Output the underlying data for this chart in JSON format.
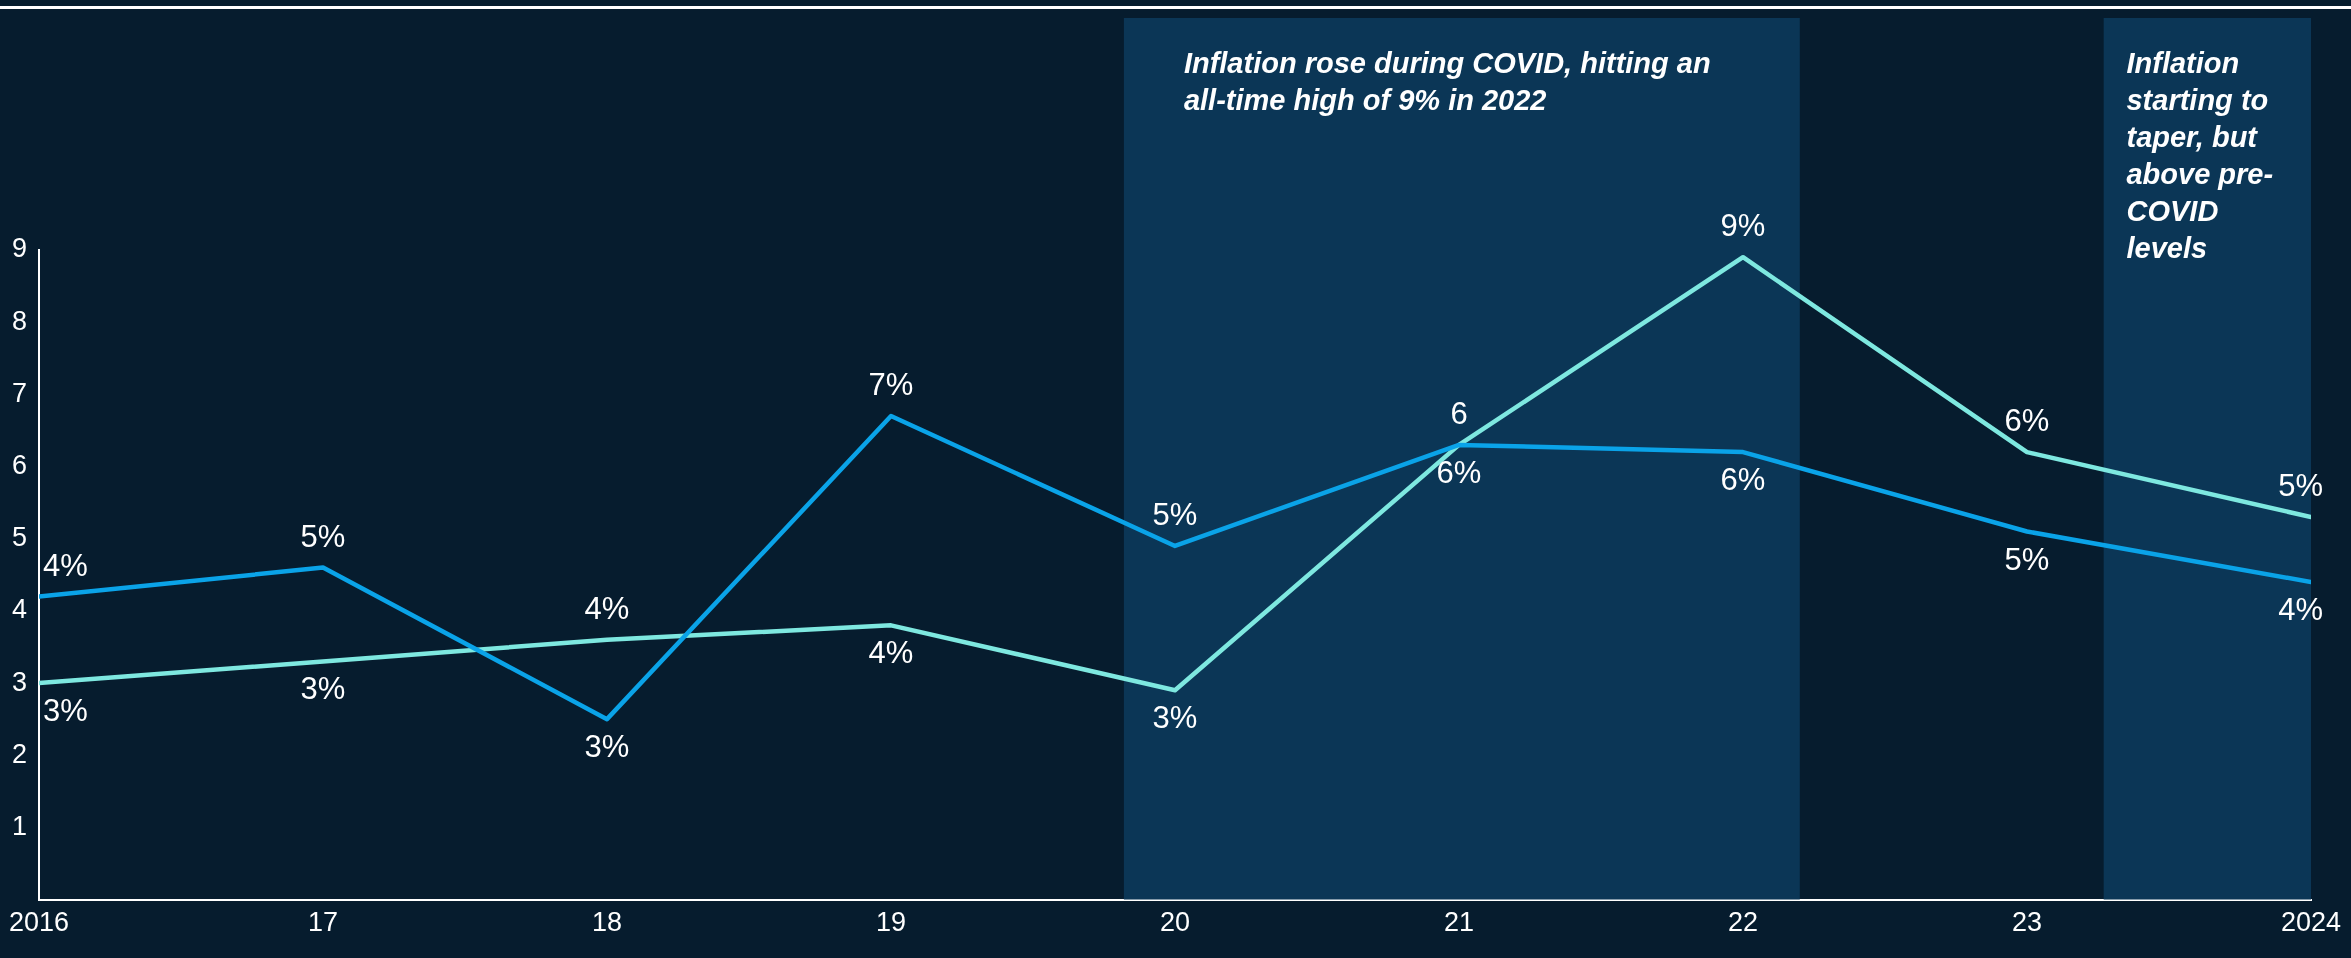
{
  "chart_data": {
    "type": "line",
    "x": [
      2016,
      2017,
      2018,
      2019,
      2020,
      2021,
      2022,
      2023,
      2024
    ],
    "xlim": [
      2016,
      2024
    ],
    "xticks": [
      {
        "value": 2016,
        "label": "2016"
      },
      {
        "value": 2017,
        "label": "17"
      },
      {
        "value": 2018,
        "label": "18"
      },
      {
        "value": 2019,
        "label": "19"
      },
      {
        "value": 2020,
        "label": "20"
      },
      {
        "value": 2021,
        "label": "21"
      },
      {
        "value": 2022,
        "label": "22"
      },
      {
        "value": 2023,
        "label": "23"
      },
      {
        "value": 2024,
        "label": "2024"
      }
    ],
    "ylim": [
      0,
      9
    ],
    "yticks": [
      1,
      2,
      3,
      4,
      5,
      6,
      7,
      8,
      9
    ],
    "series": [
      {
        "color": "#0aa3e8",
        "values": [
          4.2,
          4.6,
          2.5,
          6.7,
          4.9,
          6.3,
          6.2,
          5.1,
          4.4
        ],
        "value_labels": [
          "4%",
          "5%",
          "3%",
          "7%",
          "5%",
          "6",
          "6%",
          "5%",
          "4%"
        ]
      },
      {
        "color": "#7ee8e0",
        "values": [
          3.0,
          3.3,
          3.6,
          3.8,
          2.9,
          6.3,
          8.9,
          6.2,
          5.3
        ],
        "value_labels": [
          "3%",
          "3%",
          "4%",
          "4%",
          "3%",
          "6%",
          "9%",
          "6%",
          "5%"
        ]
      }
    ],
    "bands": [
      {
        "axis": "x",
        "from": 2019.82,
        "to": 2022.2,
        "label": "Inflation rose during COVID, hitting an all-time high of 9% in 2022",
        "color": "#0b3656"
      },
      {
        "axis": "x",
        "from": 2023.27,
        "to": 2024,
        "label": "Inflation starting to taper, but above pre-COVID levels",
        "color": "#0b3656"
      }
    ],
    "grid": false,
    "legend": false,
    "marker": "none",
    "line_style": "solid"
  }
}
